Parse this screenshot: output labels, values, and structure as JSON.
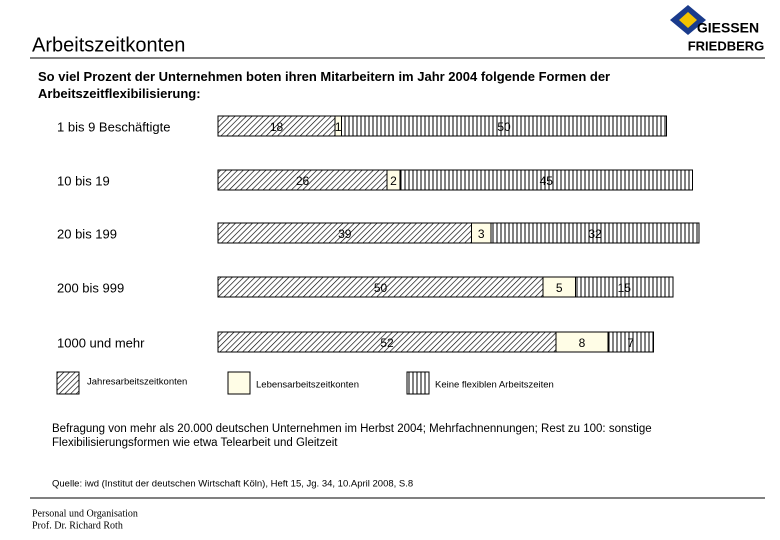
{
  "header": {
    "title": "Arbeitszeitkonten"
  },
  "logo": {
    "line1": "GIESSEN",
    "line2": "FRIEDBERG"
  },
  "chart_data": {
    "type": "stacked-bar-horizontal",
    "title": "So viel Prozent der Unternehmen boten ihren Mitarbeitern im Jahr 2004 folgende Formen der Arbeitszeitflexibilisierung:",
    "categories": [
      "1 bis 9 Beschäftigte",
      "10 bis 19",
      "20 bis 199",
      "200 bis 999",
      "1000 und mehr"
    ],
    "series": [
      {
        "name": "Jahresarbeitszeitkonten",
        "color": "#000000",
        "pattern": "diagonal",
        "values": [
          18,
          26,
          39,
          50,
          52
        ]
      },
      {
        "name": "Lebensarbeitszeitkonten",
        "color": "#fffde6",
        "pattern": "solid",
        "values": [
          1,
          2,
          3,
          5,
          8
        ]
      },
      {
        "name": "Keine flexiblen Arbeitszeiten",
        "color": "#000000",
        "pattern": "vertical",
        "values": [
          50,
          45,
          32,
          15,
          7
        ]
      }
    ]
  },
  "footnote": "Befragung von mehr als 20.000 deutschen Unternehmen im Herbst 2004; Mehrfachnennungen; Rest zu 100: sonstige Flexibilisierungsformen wie etwa Telearbeit und Gleitzeit",
  "source": "Quelle: iwd (Institut der deutschen Wirtschaft Köln), Heft 15, Jg. 34, 10.April 2008, S.8",
  "footer": {
    "line1": "Personal und Organisation",
    "line2": "Prof. Dr. Richard Roth"
  }
}
